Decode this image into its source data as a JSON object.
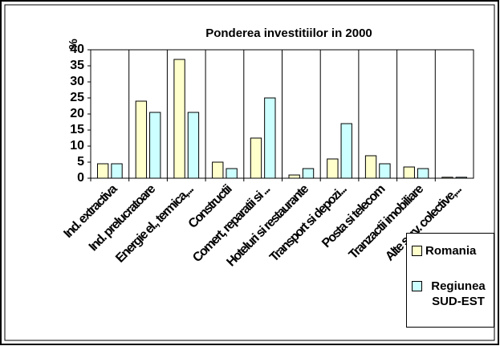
{
  "chart_data": {
    "type": "bar",
    "title": "Ponderea investitiilor in 2000",
    "y_label": "%",
    "categories": [
      "Ind. extractiva",
      "Ind. prelucratoare",
      "Energie el., termica,...",
      "Constructii",
      "Comert, reparatii si ...",
      "Hoteluri si restaurante",
      "Transport si depozi...",
      "Posta si telecom",
      "Tranzactii imobiliare",
      "Alte serv. colective,..."
    ],
    "series": [
      {
        "name": "Romania",
        "color": "#ffffcc",
        "values": [
          4.5,
          24,
          37,
          5,
          12.5,
          1,
          6,
          7,
          3.5,
          0.3
        ]
      },
      {
        "name": "Regiunea SUD-EST",
        "color": "#ccffff",
        "values": [
          4.5,
          20.5,
          20.5,
          3,
          25,
          3,
          17,
          4.5,
          3,
          0.3
        ]
      }
    ],
    "ylim": [
      0,
      40
    ],
    "yticks": [
      0,
      5,
      10,
      15,
      20,
      25,
      30,
      35,
      40
    ],
    "grid": true,
    "legend": "right"
  }
}
